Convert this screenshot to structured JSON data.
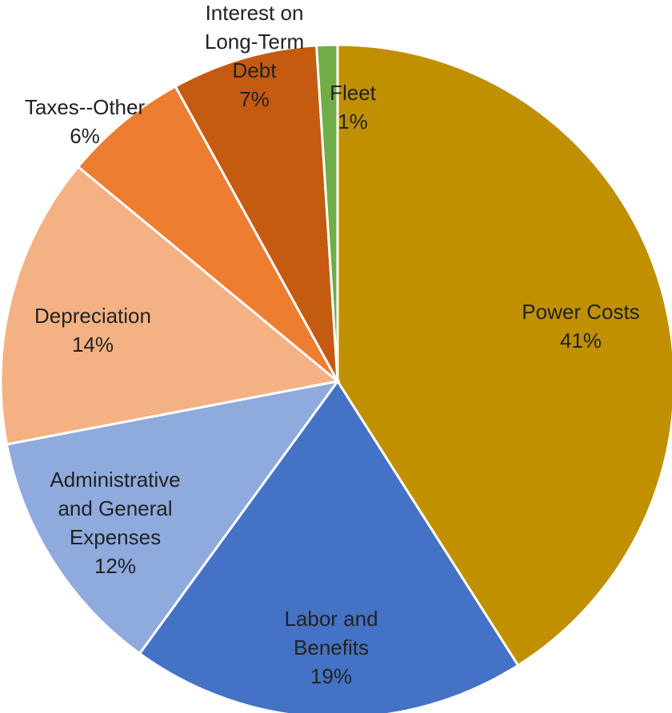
{
  "chart_data": {
    "type": "pie",
    "start": "12 o'clock",
    "direction": "clockwise",
    "series": [
      {
        "slices": [
          {
            "label": "Power Costs",
            "value": 41,
            "value_label": "41%",
            "color": "#C09000"
          },
          {
            "label": "Labor and Benefits",
            "value": 19,
            "value_label": "19%",
            "color": "#4472C4"
          },
          {
            "label": "Administrative and General Expenses",
            "value": 12,
            "value_label": "12%",
            "color": "#8FAADC"
          },
          {
            "label": "Depreciation",
            "value": 14,
            "value_label": "14%",
            "color": "#F4B183"
          },
          {
            "label": "Taxes--Other",
            "value": 6,
            "value_label": "6%",
            "color": "#ED7D31"
          },
          {
            "label": "Interest on Long-Term Debt",
            "value": 7,
            "value_label": "7%",
            "color": "#C55A11"
          },
          {
            "label": "Fleet",
            "value": 1,
            "value_label": "1%",
            "color": "#70AD47"
          }
        ]
      }
    ]
  }
}
